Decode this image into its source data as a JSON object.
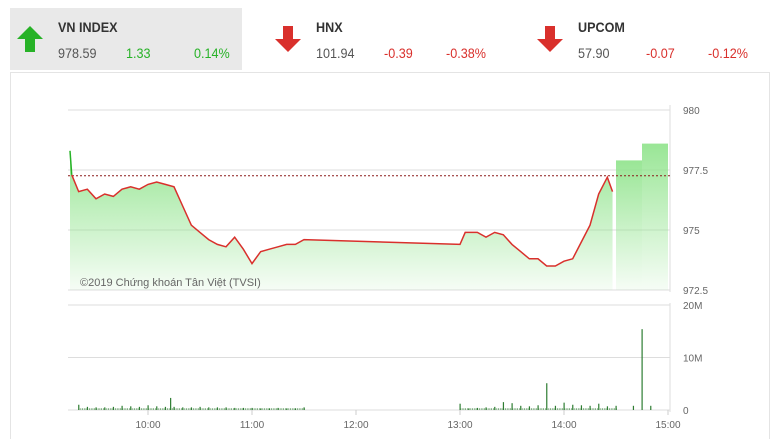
{
  "indices": [
    {
      "name": "VN INDEX",
      "value": "978.59",
      "change": "1.33",
      "percent": "0.14%",
      "direction": "up",
      "active": true
    },
    {
      "name": "HNX",
      "value": "101.94",
      "change": "-0.39",
      "percent": "-0.38%",
      "direction": "down",
      "active": false
    },
    {
      "name": "UPCOM",
      "value": "57.90",
      "change": "-0.07",
      "percent": "-0.12%",
      "direction": "down",
      "active": false
    }
  ],
  "colors": {
    "up": "#27b227",
    "down": "#d9302c",
    "line": "#d9302c",
    "area": "#8ee38a",
    "volume": "#2e7d32",
    "reference": "#8b1a1a"
  },
  "chart_data": [
    {
      "type": "line",
      "title": "",
      "reference_value": 977.26,
      "ylim": [
        972.5,
        980
      ],
      "y_ticks": [
        "980",
        "977.5",
        "975",
        "972.5"
      ],
      "x_ticks": [
        "10:00",
        "11:00",
        "12:00",
        "13:00",
        "14:00",
        "15:00"
      ],
      "grid": true,
      "watermark": "©2019 Chứng khoán Tân Việt (TVSI)",
      "series": {
        "x": [
          "09:15",
          "09:16",
          "09:20",
          "09:25",
          "09:30",
          "09:35",
          "09:40",
          "09:45",
          "09:50",
          "09:55",
          "10:00",
          "10:05",
          "10:10",
          "10:15",
          "10:20",
          "10:25",
          "10:30",
          "10:35",
          "10:40",
          "10:45",
          "10:50",
          "10:55",
          "11:00",
          "11:05",
          "11:10",
          "11:15",
          "11:20",
          "11:25",
          "11:30",
          "13:00",
          "13:03",
          "13:10",
          "13:15",
          "13:20",
          "13:25",
          "13:30",
          "13:35",
          "13:40",
          "13:45",
          "13:50",
          "13:55",
          "14:00",
          "14:05",
          "14:10",
          "14:15",
          "14:20",
          "14:25",
          "14:28"
        ],
        "y": [
          978.3,
          977.3,
          976.6,
          976.7,
          976.3,
          976.5,
          976.4,
          976.7,
          976.8,
          976.7,
          976.9,
          977.0,
          976.9,
          976.8,
          976.0,
          975.2,
          974.9,
          974.6,
          974.4,
          974.3,
          974.7,
          974.2,
          973.6,
          974.1,
          974.2,
          974.3,
          974.4,
          974.4,
          974.6,
          974.4,
          974.9,
          974.9,
          974.7,
          974.9,
          974.8,
          974.4,
          974.1,
          973.8,
          973.8,
          973.5,
          973.5,
          973.7,
          973.8,
          974.5,
          975.2,
          976.5,
          977.2,
          976.6
        ]
      },
      "closing_auction": [
        {
          "from": "14:30",
          "to": "14:45",
          "value": 977.9
        },
        {
          "from": "14:45",
          "to": "15:00",
          "value": 978.6
        }
      ]
    },
    {
      "type": "bar",
      "title": "",
      "ylim": [
        0,
        20
      ],
      "y_ticks": [
        "20M",
        "10M",
        "0"
      ],
      "unit": "M",
      "x": [
        "09:20",
        "09:25",
        "09:30",
        "09:35",
        "09:40",
        "09:45",
        "09:50",
        "09:55",
        "10:00",
        "10:05",
        "10:10",
        "10:13",
        "10:15",
        "10:20",
        "10:25",
        "10:30",
        "10:35",
        "10:40",
        "10:45",
        "10:50",
        "10:55",
        "11:00",
        "11:05",
        "11:10",
        "11:15",
        "11:20",
        "11:25",
        "11:30",
        "13:00",
        "13:05",
        "13:10",
        "13:15",
        "13:20",
        "13:25",
        "13:30",
        "13:35",
        "13:40",
        "13:45",
        "13:50",
        "13:55",
        "14:00",
        "14:05",
        "14:10",
        "14:15",
        "14:20",
        "14:25",
        "14:30",
        "14:40",
        "14:45",
        "14:50"
      ],
      "values": [
        1.0,
        0.6,
        0.5,
        0.5,
        0.6,
        0.8,
        0.7,
        0.6,
        0.9,
        0.7,
        0.6,
        2.3,
        0.6,
        0.5,
        0.5,
        0.6,
        0.5,
        0.5,
        0.5,
        0.4,
        0.4,
        0.4,
        0.3,
        0.3,
        0.4,
        0.3,
        0.3,
        0.5,
        1.2,
        0.3,
        0.4,
        0.5,
        0.6,
        1.5,
        1.3,
        0.8,
        0.7,
        0.9,
        5.1,
        0.8,
        1.4,
        1.0,
        0.9,
        0.8,
        1.2,
        0.7,
        0.8,
        0.8,
        15.4,
        0.8
      ]
    }
  ]
}
